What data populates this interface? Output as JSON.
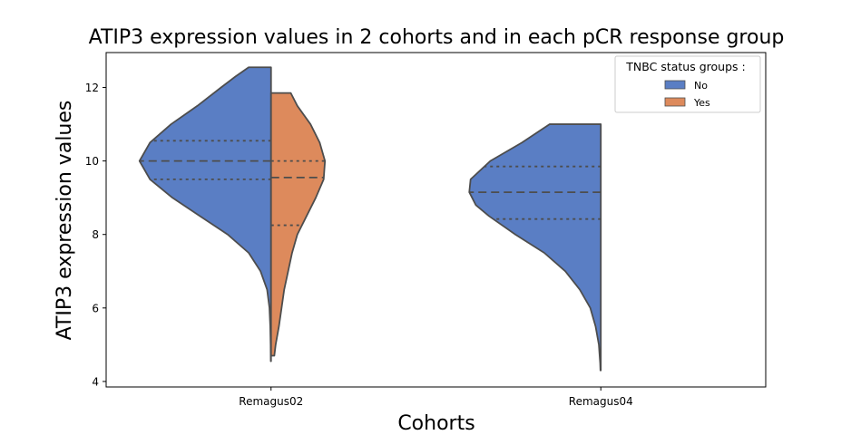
{
  "chart_data": {
    "type": "violin",
    "title": "ATIP3 expression values in 2 cohorts and in each pCR response group",
    "xlabel": "Cohorts",
    "ylabel": "ATIP3 expression values",
    "categories": [
      "Remagus02",
      "Remagus04"
    ],
    "yticks": [
      4,
      6,
      8,
      10,
      12
    ],
    "ylim": [
      3.85,
      12.95
    ],
    "grid": false,
    "split": true,
    "legend": {
      "title": "TNBC status groups :",
      "position": "top-right",
      "entries": [
        "No",
        "Yes"
      ]
    },
    "series": [
      {
        "name": "No",
        "color": "#5a7ec4",
        "side": "left",
        "violins": [
          {
            "category": "Remagus02",
            "range": [
              4.55,
              12.55
            ],
            "quartiles": [
              9.5,
              10.0,
              10.55
            ],
            "profile": [
              [
                12.55,
                0.17
              ],
              [
                12.3,
                0.27
              ],
              [
                12.0,
                0.38
              ],
              [
                11.5,
                0.56
              ],
              [
                11.0,
                0.76
              ],
              [
                10.5,
                0.92
              ],
              [
                10.0,
                1.0
              ],
              [
                9.5,
                0.92
              ],
              [
                9.0,
                0.75
              ],
              [
                8.5,
                0.54
              ],
              [
                8.0,
                0.33
              ],
              [
                7.5,
                0.17
              ],
              [
                7.0,
                0.08
              ],
              [
                6.5,
                0.03
              ],
              [
                6.0,
                0.012
              ],
              [
                5.5,
                0.006
              ],
              [
                5.0,
                0.003
              ],
              [
                4.55,
                0.002
              ]
            ]
          },
          {
            "category": "Remagus04",
            "range": [
              4.3,
              11.0
            ],
            "quartiles": [
              8.42,
              9.15,
              9.85
            ],
            "profile": [
              [
                11.0,
                0.39
              ],
              [
                10.5,
                0.6
              ],
              [
                10.0,
                0.84
              ],
              [
                9.5,
                0.99
              ],
              [
                9.15,
                1.0
              ],
              [
                8.8,
                0.95
              ],
              [
                8.5,
                0.85
              ],
              [
                8.0,
                0.65
              ],
              [
                7.5,
                0.43
              ],
              [
                7.0,
                0.27
              ],
              [
                6.5,
                0.16
              ],
              [
                6.0,
                0.08
              ],
              [
                5.5,
                0.04
              ],
              [
                5.0,
                0.015
              ],
              [
                4.5,
                0.005
              ],
              [
                4.3,
                0.003
              ]
            ]
          }
        ]
      },
      {
        "name": "Yes",
        "color": "#dd8a5c",
        "side": "right",
        "violins": [
          {
            "category": "Remagus02",
            "range": [
              4.7,
              11.85
            ],
            "quartiles": [
              8.25,
              9.55,
              10.0
            ],
            "profile": [
              [
                11.85,
                0.15
              ],
              [
                11.5,
                0.2
              ],
              [
                11.0,
                0.3
              ],
              [
                10.5,
                0.37
              ],
              [
                10.0,
                0.41
              ],
              [
                9.5,
                0.4
              ],
              [
                9.0,
                0.34
              ],
              [
                8.5,
                0.27
              ],
              [
                8.0,
                0.2
              ],
              [
                7.5,
                0.16
              ],
              [
                7.0,
                0.13
              ],
              [
                6.5,
                0.1
              ],
              [
                6.0,
                0.08
              ],
              [
                5.5,
                0.06
              ],
              [
                5.0,
                0.035
              ],
              [
                4.7,
                0.025
              ]
            ]
          }
        ]
      }
    ]
  }
}
